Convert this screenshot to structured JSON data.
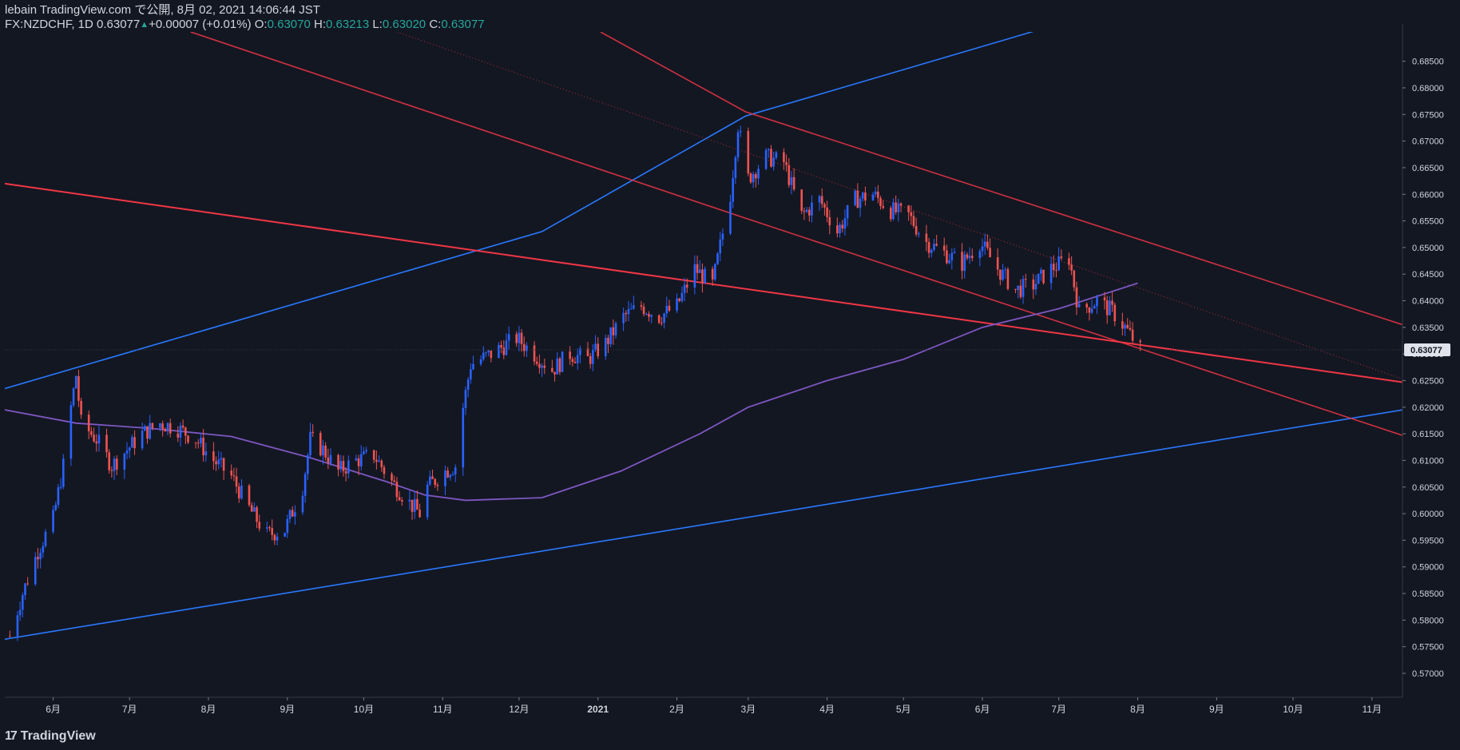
{
  "header": {
    "published": "lebain TradingView.com で公開, 8月 02, 2021 14:06:44 JST",
    "symbol": "FX:NZDCHF, 1D",
    "last": "0.63077",
    "arrow": "▲",
    "change": "+0.00007 (+0.01%)",
    "o_label": "O:",
    "o_value": "0.63070",
    "h_label": "H:",
    "h_value": "0.63213",
    "l_label": "L:",
    "l_value": "0.63020",
    "c_label": "C:",
    "c_value": "0.63077"
  },
  "footer": {
    "logo_text": "TradingView",
    "logo_mark": "17"
  },
  "colors": {
    "background": "#131722",
    "up": "#2962ff",
    "down": "#ef5350",
    "blue_line": "#2979ff",
    "red_line": "#f23645",
    "ma": "#7e57c2",
    "axis_text": "#d1d4dc"
  },
  "chart_data": {
    "type": "candlestick",
    "price_label": "0.63077",
    "y_ticks": [
      "0.68500",
      "0.68000",
      "0.67500",
      "0.67000",
      "0.66500",
      "0.66000",
      "0.65500",
      "0.65000",
      "0.64500",
      "0.64000",
      "0.63500",
      "0.63000",
      "0.62500",
      "0.62000",
      "0.61500",
      "0.61000",
      "0.60500",
      "0.60000",
      "0.59500",
      "0.59000",
      "0.58500",
      "0.58000",
      "0.57500",
      "0.57000"
    ],
    "x_ticks": [
      "6月",
      "7月",
      "8月",
      "9月",
      "10月",
      "11月",
      "12月",
      "2021",
      "2月",
      "3月",
      "4月",
      "5月",
      "6月",
      "7月",
      "8月",
      "9月",
      "10月",
      "11月"
    ],
    "ylim": [
      0.5655,
      0.6905
    ],
    "x_range": [
      "2020-05-13",
      "2021-11-13"
    ],
    "close_path": [
      [
        "2020-05-15",
        0.577
      ],
      [
        "2020-05-20",
        0.585
      ],
      [
        "2020-05-26",
        0.593
      ],
      [
        "2020-06-01",
        0.599
      ],
      [
        "2020-06-05",
        0.609
      ],
      [
        "2020-06-08",
        0.62
      ],
      [
        "2020-06-10",
        0.626
      ],
      [
        "2020-06-12",
        0.617
      ],
      [
        "2020-06-18",
        0.614
      ],
      [
        "2020-06-24",
        0.609
      ],
      [
        "2020-06-30",
        0.612
      ],
      [
        "2020-07-06",
        0.615
      ],
      [
        "2020-07-13",
        0.617
      ],
      [
        "2020-07-20",
        0.616
      ],
      [
        "2020-07-27",
        0.614
      ],
      [
        "2020-08-03",
        0.61
      ],
      [
        "2020-08-10",
        0.607
      ],
      [
        "2020-08-17",
        0.601
      ],
      [
        "2020-08-24",
        0.596
      ],
      [
        "2020-08-31",
        0.597
      ],
      [
        "2020-09-07",
        0.605
      ],
      [
        "2020-09-10",
        0.614
      ],
      [
        "2020-09-15",
        0.612
      ],
      [
        "2020-09-21",
        0.608
      ],
      [
        "2020-09-28",
        0.61
      ],
      [
        "2020-10-05",
        0.611
      ],
      [
        "2020-10-12",
        0.606
      ],
      [
        "2020-10-19",
        0.602
      ],
      [
        "2020-10-23",
        0.6
      ],
      [
        "2020-10-26",
        0.605
      ],
      [
        "2020-11-02",
        0.608
      ],
      [
        "2020-11-06",
        0.609
      ],
      [
        "2020-11-09",
        0.62
      ],
      [
        "2020-11-12",
        0.628
      ],
      [
        "2020-11-20",
        0.63
      ],
      [
        "2020-11-30",
        0.633
      ],
      [
        "2020-12-07",
        0.63
      ],
      [
        "2020-12-14",
        0.627
      ],
      [
        "2020-12-21",
        0.63
      ],
      [
        "2020-12-28",
        0.629
      ],
      [
        "2021-01-04",
        0.632
      ],
      [
        "2021-01-11",
        0.637
      ],
      [
        "2021-01-18",
        0.639
      ],
      [
        "2021-01-25",
        0.637
      ],
      [
        "2021-02-01",
        0.639
      ],
      [
        "2021-02-08",
        0.646
      ],
      [
        "2021-02-15",
        0.643
      ],
      [
        "2021-02-22",
        0.66
      ],
      [
        "2021-02-25",
        0.673
      ],
      [
        "2021-03-01",
        0.663
      ],
      [
        "2021-03-08",
        0.667
      ],
      [
        "2021-03-15",
        0.666
      ],
      [
        "2021-03-22",
        0.656
      ],
      [
        "2021-03-29",
        0.659
      ],
      [
        "2021-04-05",
        0.653
      ],
      [
        "2021-04-12",
        0.659
      ],
      [
        "2021-04-19",
        0.66
      ],
      [
        "2021-04-26",
        0.657
      ],
      [
        "2021-05-03",
        0.656
      ],
      [
        "2021-05-10",
        0.651
      ],
      [
        "2021-05-17",
        0.649
      ],
      [
        "2021-05-24",
        0.647
      ],
      [
        "2021-05-31",
        0.651
      ],
      [
        "2021-06-07",
        0.646
      ],
      [
        "2021-06-14",
        0.642
      ],
      [
        "2021-06-21",
        0.643
      ],
      [
        "2021-06-28",
        0.646
      ],
      [
        "2021-07-05",
        0.648
      ],
      [
        "2021-07-09",
        0.638
      ],
      [
        "2021-07-16",
        0.64
      ],
      [
        "2021-07-22",
        0.638
      ],
      [
        "2021-07-27",
        0.635
      ],
      [
        "2021-08-02",
        0.6308
      ]
    ],
    "ma_path": [
      [
        "2020-05-13",
        0.6195
      ],
      [
        "2020-06-10",
        0.617
      ],
      [
        "2020-07-10",
        0.616
      ],
      [
        "2020-08-10",
        0.6145
      ],
      [
        "2020-09-10",
        0.6105
      ],
      [
        "2020-10-10",
        0.606
      ],
      [
        "2020-10-25",
        0.6035
      ],
      [
        "2020-11-10",
        0.6025
      ],
      [
        "2020-12-10",
        0.603
      ],
      [
        "2021-01-10",
        0.608
      ],
      [
        "2021-02-10",
        0.615
      ],
      [
        "2021-03-01",
        0.62
      ],
      [
        "2021-04-01",
        0.625
      ],
      [
        "2021-05-01",
        0.629
      ],
      [
        "2021-06-01",
        0.635
      ],
      [
        "2021-07-01",
        0.6385
      ],
      [
        "2021-08-01",
        0.6433
      ]
    ],
    "trendlines": [
      {
        "color": "blue",
        "points": [
          [
            "2020-05-13",
            0.5764
          ],
          [
            "2021-11-13",
            0.6195
          ]
        ]
      },
      {
        "color": "blue",
        "points": [
          [
            "2020-05-13",
            0.6235
          ],
          [
            "2020-12-10",
            0.653
          ],
          [
            "2021-02-28",
            0.6747
          ],
          [
            "2021-11-13",
            0.711
          ]
        ]
      },
      {
        "color": "red",
        "points": [
          [
            "2020-05-13",
            0.662
          ],
          [
            "2021-11-13",
            0.6247
          ]
        ]
      },
      {
        "color": "red",
        "points": [
          [
            "2020-07-25",
            0.6905
          ],
          [
            "2021-02-28",
            0.6555
          ],
          [
            "2021-11-13",
            0.6147
          ]
        ]
      },
      {
        "color": "red",
        "points": [
          [
            "2021-01-02",
            0.6905
          ],
          [
            "2021-02-28",
            0.6755
          ],
          [
            "2021-11-13",
            0.6355
          ]
        ]
      }
    ],
    "dotted_line": {
      "color": "red",
      "points": [
        [
          "2020-10-14",
          0.6905
        ],
        [
          "2021-11-13",
          0.6253
        ]
      ]
    }
  }
}
